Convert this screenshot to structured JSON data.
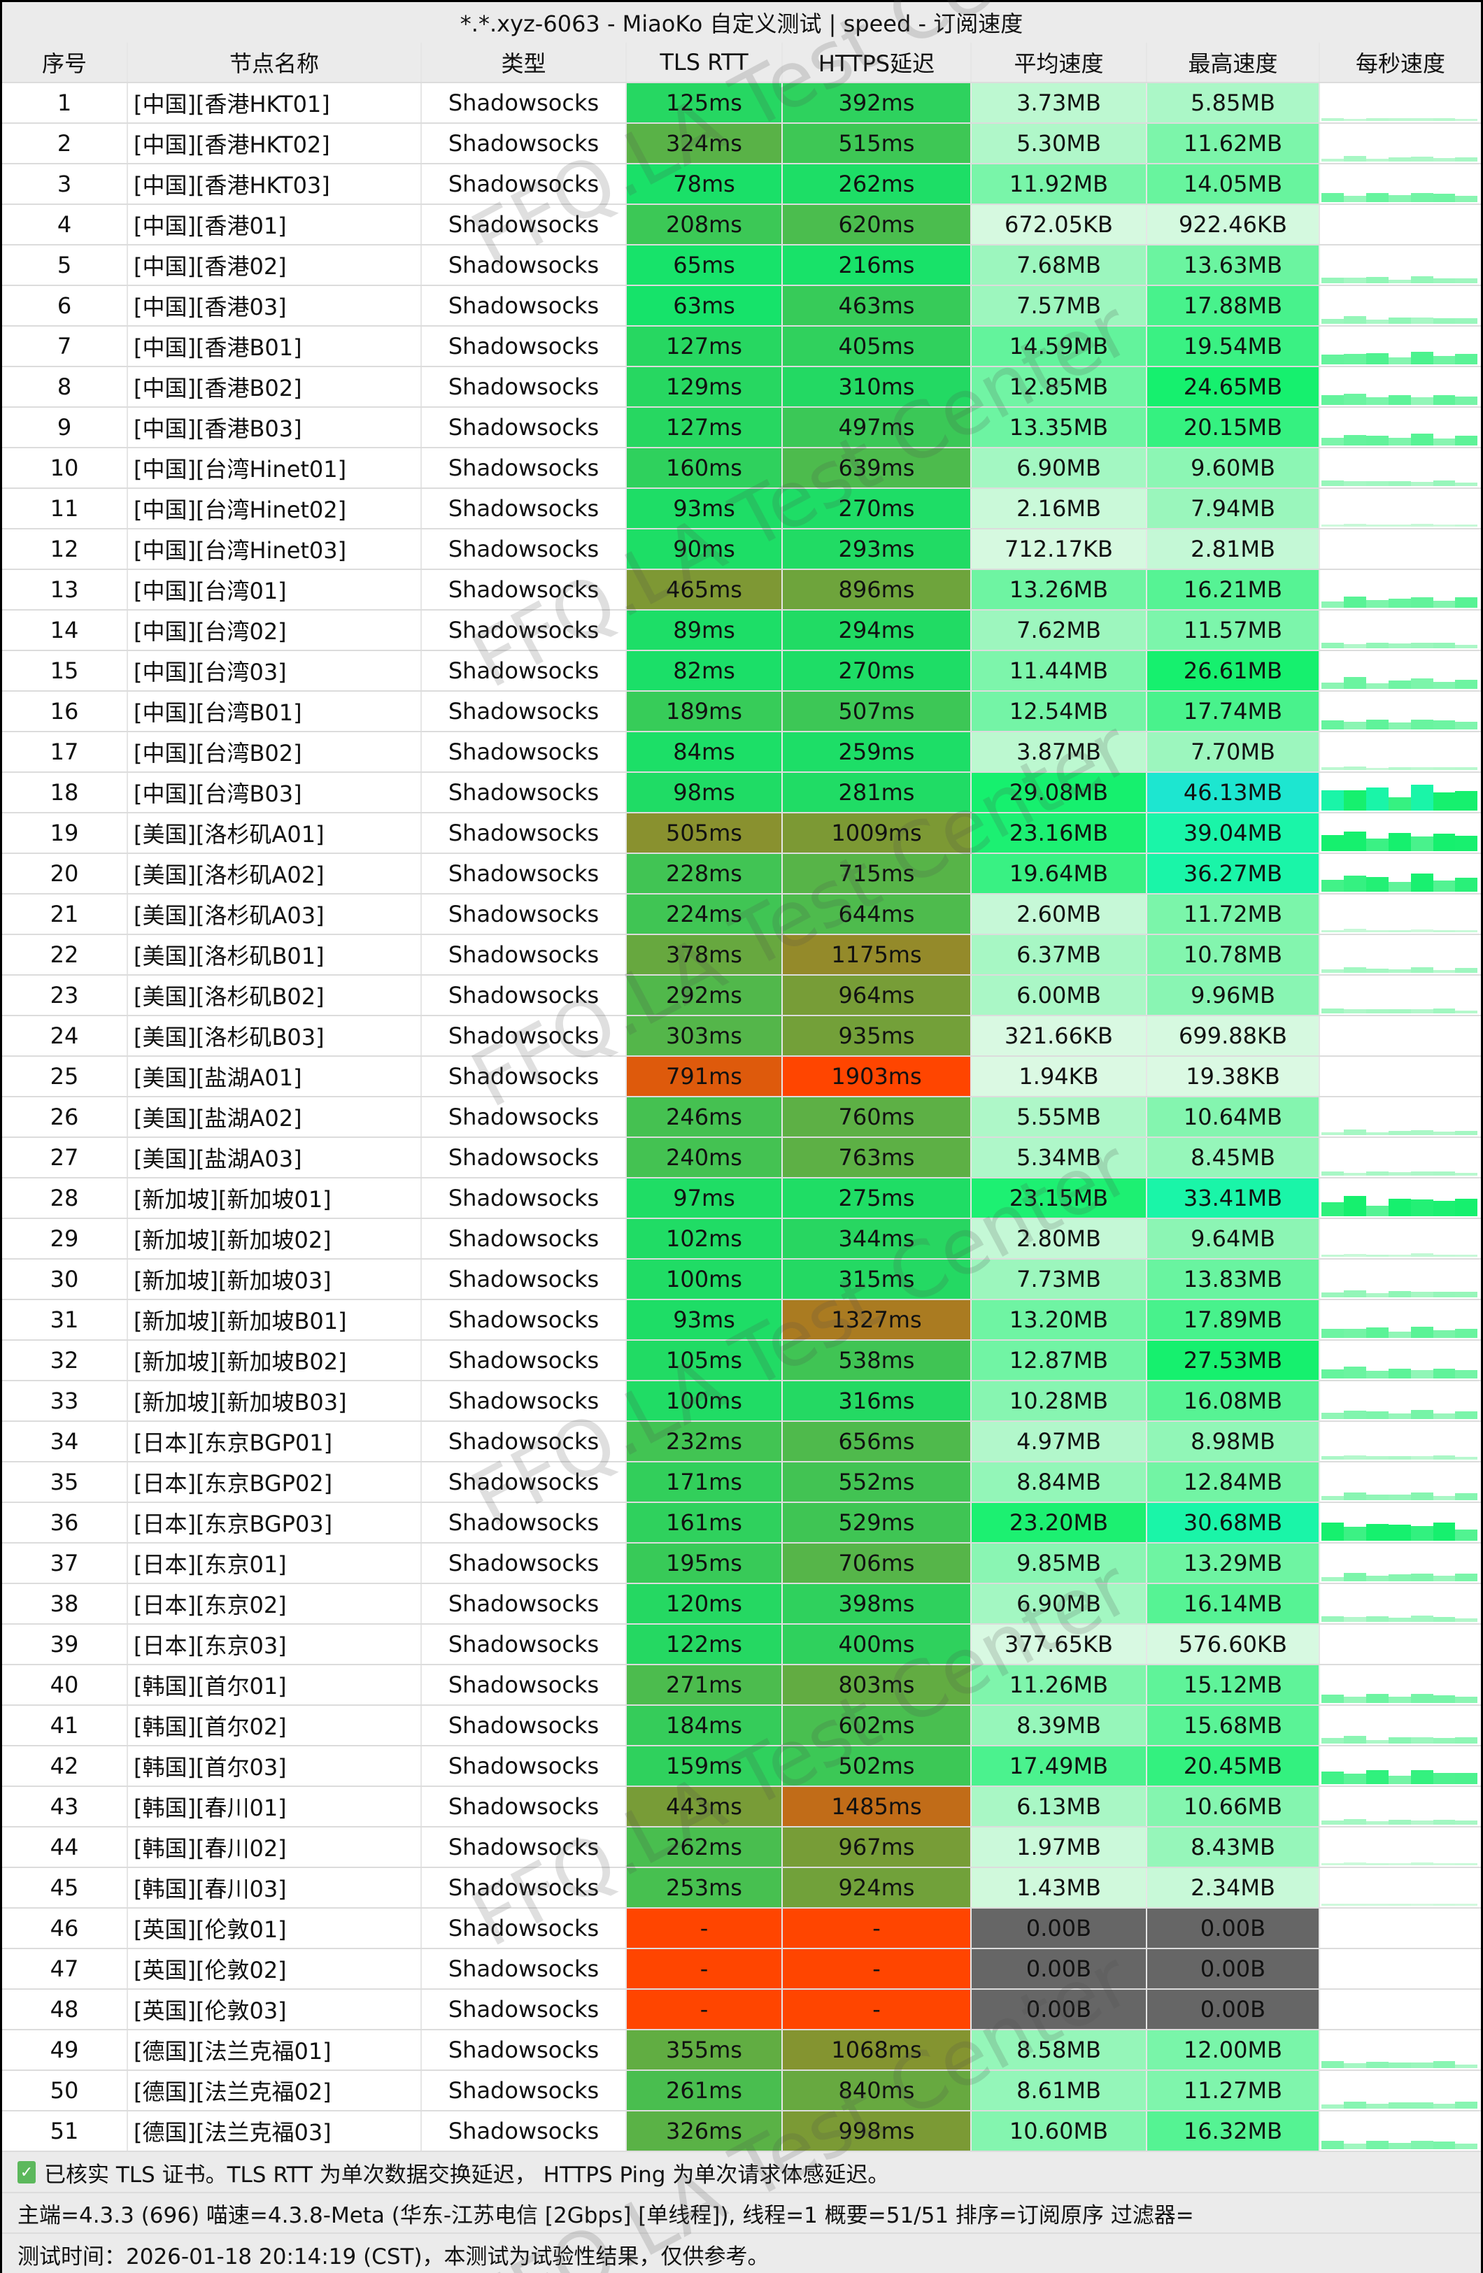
{
  "title": "*.*.xyz-6063 - MiaoKo 自定义测试 | speed - 订阅速度",
  "columns": [
    "序号",
    "节点名称",
    "类型",
    "TLS RTT",
    "HTTPS延迟",
    "平均速度",
    "最高速度",
    "每秒速度"
  ],
  "colors": {
    "header_bg": "#ebebeb",
    "row_bg": "#ffffff",
    "fail_red": "#ff4500",
    "zero_gray": "#666666",
    "good_green": "#16e46b"
  },
  "rows": [
    {
      "no": "1",
      "name": "[中国][香港HKT01]",
      "type": "Shadowsocks",
      "tls": "125ms",
      "https": "392ms",
      "avg": "3.73MB",
      "max": "5.85MB"
    },
    {
      "no": "2",
      "name": "[中国][香港HKT02]",
      "type": "Shadowsocks",
      "tls": "324ms",
      "https": "515ms",
      "avg": "5.30MB",
      "max": "11.62MB"
    },
    {
      "no": "3",
      "name": "[中国][香港HKT03]",
      "type": "Shadowsocks",
      "tls": "78ms",
      "https": "262ms",
      "avg": "11.92MB",
      "max": "14.05MB"
    },
    {
      "no": "4",
      "name": "[中国][香港01]",
      "type": "Shadowsocks",
      "tls": "208ms",
      "https": "620ms",
      "avg": "672.05KB",
      "max": "922.46KB"
    },
    {
      "no": "5",
      "name": "[中国][香港02]",
      "type": "Shadowsocks",
      "tls": "65ms",
      "https": "216ms",
      "avg": "7.68MB",
      "max": "13.63MB"
    },
    {
      "no": "6",
      "name": "[中国][香港03]",
      "type": "Shadowsocks",
      "tls": "63ms",
      "https": "463ms",
      "avg": "7.57MB",
      "max": "17.88MB"
    },
    {
      "no": "7",
      "name": "[中国][香港B01]",
      "type": "Shadowsocks",
      "tls": "127ms",
      "https": "405ms",
      "avg": "14.59MB",
      "max": "19.54MB"
    },
    {
      "no": "8",
      "name": "[中国][香港B02]",
      "type": "Shadowsocks",
      "tls": "129ms",
      "https": "310ms",
      "avg": "12.85MB",
      "max": "24.65MB"
    },
    {
      "no": "9",
      "name": "[中国][香港B03]",
      "type": "Shadowsocks",
      "tls": "127ms",
      "https": "497ms",
      "avg": "13.35MB",
      "max": "20.15MB"
    },
    {
      "no": "10",
      "name": "[中国][台湾Hinet01]",
      "type": "Shadowsocks",
      "tls": "160ms",
      "https": "639ms",
      "avg": "6.90MB",
      "max": "9.60MB"
    },
    {
      "no": "11",
      "name": "[中国][台湾Hinet02]",
      "type": "Shadowsocks",
      "tls": "93ms",
      "https": "270ms",
      "avg": "2.16MB",
      "max": "7.94MB"
    },
    {
      "no": "12",
      "name": "[中国][台湾Hinet03]",
      "type": "Shadowsocks",
      "tls": "90ms",
      "https": "293ms",
      "avg": "712.17KB",
      "max": "2.81MB"
    },
    {
      "no": "13",
      "name": "[中国][台湾01]",
      "type": "Shadowsocks",
      "tls": "465ms",
      "https": "896ms",
      "avg": "13.26MB",
      "max": "16.21MB"
    },
    {
      "no": "14",
      "name": "[中国][台湾02]",
      "type": "Shadowsocks",
      "tls": "89ms",
      "https": "294ms",
      "avg": "7.62MB",
      "max": "11.57MB"
    },
    {
      "no": "15",
      "name": "[中国][台湾03]",
      "type": "Shadowsocks",
      "tls": "82ms",
      "https": "270ms",
      "avg": "11.44MB",
      "max": "26.61MB"
    },
    {
      "no": "16",
      "name": "[中国][台湾B01]",
      "type": "Shadowsocks",
      "tls": "189ms",
      "https": "507ms",
      "avg": "12.54MB",
      "max": "17.74MB"
    },
    {
      "no": "17",
      "name": "[中国][台湾B02]",
      "type": "Shadowsocks",
      "tls": "84ms",
      "https": "259ms",
      "avg": "3.87MB",
      "max": "7.70MB"
    },
    {
      "no": "18",
      "name": "[中国][台湾B03]",
      "type": "Shadowsocks",
      "tls": "98ms",
      "https": "281ms",
      "avg": "29.08MB",
      "max": "46.13MB"
    },
    {
      "no": "19",
      "name": "[美国][洛杉矶A01]",
      "type": "Shadowsocks",
      "tls": "505ms",
      "https": "1009ms",
      "avg": "23.16MB",
      "max": "39.04MB"
    },
    {
      "no": "20",
      "name": "[美国][洛杉矶A02]",
      "type": "Shadowsocks",
      "tls": "228ms",
      "https": "715ms",
      "avg": "19.64MB",
      "max": "36.27MB"
    },
    {
      "no": "21",
      "name": "[美国][洛杉矶A03]",
      "type": "Shadowsocks",
      "tls": "224ms",
      "https": "644ms",
      "avg": "2.60MB",
      "max": "11.72MB"
    },
    {
      "no": "22",
      "name": "[美国][洛杉矶B01]",
      "type": "Shadowsocks",
      "tls": "378ms",
      "https": "1175ms",
      "avg": "6.37MB",
      "max": "10.78MB"
    },
    {
      "no": "23",
      "name": "[美国][洛杉矶B02]",
      "type": "Shadowsocks",
      "tls": "292ms",
      "https": "964ms",
      "avg": "6.00MB",
      "max": "9.96MB"
    },
    {
      "no": "24",
      "name": "[美国][洛杉矶B03]",
      "type": "Shadowsocks",
      "tls": "303ms",
      "https": "935ms",
      "avg": "321.66KB",
      "max": "699.88KB"
    },
    {
      "no": "25",
      "name": "[美国][盐湖A01]",
      "type": "Shadowsocks",
      "tls": "791ms",
      "https": "1903ms",
      "avg": "1.94KB",
      "max": "19.38KB"
    },
    {
      "no": "26",
      "name": "[美国][盐湖A02]",
      "type": "Shadowsocks",
      "tls": "246ms",
      "https": "760ms",
      "avg": "5.55MB",
      "max": "10.64MB"
    },
    {
      "no": "27",
      "name": "[美国][盐湖A03]",
      "type": "Shadowsocks",
      "tls": "240ms",
      "https": "763ms",
      "avg": "5.34MB",
      "max": "8.45MB"
    },
    {
      "no": "28",
      "name": "[新加坡][新加坡01]",
      "type": "Shadowsocks",
      "tls": "97ms",
      "https": "275ms",
      "avg": "23.15MB",
      "max": "33.41MB"
    },
    {
      "no": "29",
      "name": "[新加坡][新加坡02]",
      "type": "Shadowsocks",
      "tls": "102ms",
      "https": "344ms",
      "avg": "2.80MB",
      "max": "9.64MB"
    },
    {
      "no": "30",
      "name": "[新加坡][新加坡03]",
      "type": "Shadowsocks",
      "tls": "100ms",
      "https": "315ms",
      "avg": "7.73MB",
      "max": "13.83MB"
    },
    {
      "no": "31",
      "name": "[新加坡][新加坡B01]",
      "type": "Shadowsocks",
      "tls": "93ms",
      "https": "1327ms",
      "avg": "13.20MB",
      "max": "17.89MB"
    },
    {
      "no": "32",
      "name": "[新加坡][新加坡B02]",
      "type": "Shadowsocks",
      "tls": "105ms",
      "https": "538ms",
      "avg": "12.87MB",
      "max": "27.53MB"
    },
    {
      "no": "33",
      "name": "[新加坡][新加坡B03]",
      "type": "Shadowsocks",
      "tls": "100ms",
      "https": "316ms",
      "avg": "10.28MB",
      "max": "16.08MB"
    },
    {
      "no": "34",
      "name": "[日本][东京BGP01]",
      "type": "Shadowsocks",
      "tls": "232ms",
      "https": "656ms",
      "avg": "4.97MB",
      "max": "8.98MB"
    },
    {
      "no": "35",
      "name": "[日本][东京BGP02]",
      "type": "Shadowsocks",
      "tls": "171ms",
      "https": "552ms",
      "avg": "8.84MB",
      "max": "12.84MB"
    },
    {
      "no": "36",
      "name": "[日本][东京BGP03]",
      "type": "Shadowsocks",
      "tls": "161ms",
      "https": "529ms",
      "avg": "23.20MB",
      "max": "30.68MB"
    },
    {
      "no": "37",
      "name": "[日本][东京01]",
      "type": "Shadowsocks",
      "tls": "195ms",
      "https": "706ms",
      "avg": "9.85MB",
      "max": "13.29MB"
    },
    {
      "no": "38",
      "name": "[日本][东京02]",
      "type": "Shadowsocks",
      "tls": "120ms",
      "https": "398ms",
      "avg": "6.90MB",
      "max": "16.14MB"
    },
    {
      "no": "39",
      "name": "[日本][东京03]",
      "type": "Shadowsocks",
      "tls": "122ms",
      "https": "400ms",
      "avg": "377.65KB",
      "max": "576.60KB"
    },
    {
      "no": "40",
      "name": "[韩国][首尔01]",
      "type": "Shadowsocks",
      "tls": "271ms",
      "https": "803ms",
      "avg": "11.26MB",
      "max": "15.12MB"
    },
    {
      "no": "41",
      "name": "[韩国][首尔02]",
      "type": "Shadowsocks",
      "tls": "184ms",
      "https": "602ms",
      "avg": "8.39MB",
      "max": "15.68MB"
    },
    {
      "no": "42",
      "name": "[韩国][首尔03]",
      "type": "Shadowsocks",
      "tls": "159ms",
      "https": "502ms",
      "avg": "17.49MB",
      "max": "20.45MB"
    },
    {
      "no": "43",
      "name": "[韩国][春川01]",
      "type": "Shadowsocks",
      "tls": "443ms",
      "https": "1485ms",
      "avg": "6.13MB",
      "max": "10.66MB"
    },
    {
      "no": "44",
      "name": "[韩国][春川02]",
      "type": "Shadowsocks",
      "tls": "262ms",
      "https": "967ms",
      "avg": "1.97MB",
      "max": "8.43MB"
    },
    {
      "no": "45",
      "name": "[韩国][春川03]",
      "type": "Shadowsocks",
      "tls": "253ms",
      "https": "924ms",
      "avg": "1.43MB",
      "max": "2.34MB"
    },
    {
      "no": "46",
      "name": "[英国][伦敦01]",
      "type": "Shadowsocks",
      "tls": "-",
      "https": "-",
      "avg": "0.00B",
      "max": "0.00B"
    },
    {
      "no": "47",
      "name": "[英国][伦敦02]",
      "type": "Shadowsocks",
      "tls": "-",
      "https": "-",
      "avg": "0.00B",
      "max": "0.00B"
    },
    {
      "no": "48",
      "name": "[英国][伦敦03]",
      "type": "Shadowsocks",
      "tls": "-",
      "https": "-",
      "avg": "0.00B",
      "max": "0.00B"
    },
    {
      "no": "49",
      "name": "[德国][法兰克福01]",
      "type": "Shadowsocks",
      "tls": "355ms",
      "https": "1068ms",
      "avg": "8.58MB",
      "max": "12.00MB"
    },
    {
      "no": "50",
      "name": "[德国][法兰克福02]",
      "type": "Shadowsocks",
      "tls": "261ms",
      "https": "840ms",
      "avg": "8.61MB",
      "max": "11.27MB"
    },
    {
      "no": "51",
      "name": "[德国][法兰克福03]",
      "type": "Shadowsocks",
      "tls": "326ms",
      "https": "998ms",
      "avg": "10.60MB",
      "max": "16.32MB"
    }
  ],
  "footer": {
    "check_icon": "✓",
    "line1": "已核实 TLS 证书。TLS RTT 为单次数据交换延迟， HTTPS Ping 为单次请求体感延迟。",
    "line2": "主端=4.3.3 (696) 喵速=4.3.8-Meta (华东-江苏电信 [2Gbps] [单线程]), 线程=1 概要=51/51 排序=订阅原序 过滤器=",
    "line3": "测试时间：2026-01-18 20:14:19 (CST)，本测试为试验性结果，仅供参考。"
  },
  "watermark": "FFQ.LA Test Center"
}
